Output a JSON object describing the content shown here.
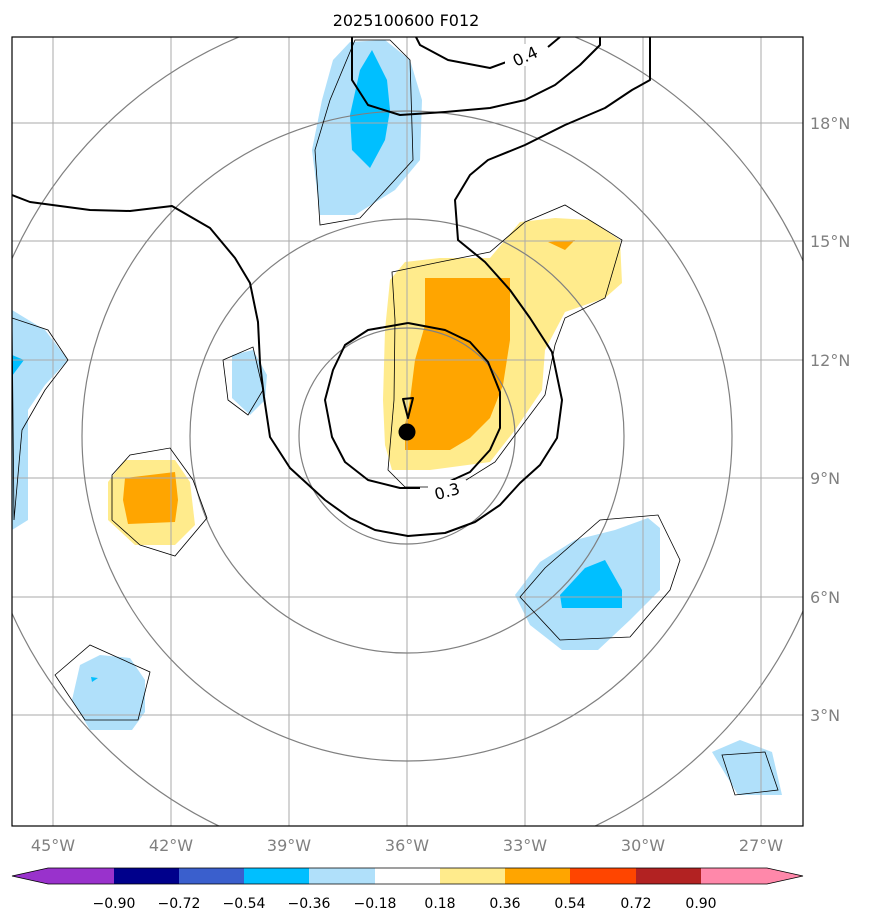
{
  "title": "2025100600 F012",
  "map": {
    "lon_ticks": [
      "45°W",
      "42°W",
      "39°W",
      "36°W",
      "33°W",
      "30°W",
      "27°W"
    ],
    "lon_values": [
      -45,
      -42,
      -39,
      -36,
      -33,
      -30,
      -27
    ],
    "lat_ticks": [
      "3°N",
      "6°N",
      "9°N",
      "12°N",
      "15°N",
      "18°N"
    ],
    "lat_values": [
      3,
      6,
      9,
      12,
      15,
      18
    ],
    "lon_range": [
      -46,
      -26
    ],
    "lat_range": [
      0,
      20
    ],
    "contour_labels": [
      "0.4",
      "0.3"
    ],
    "storm_center": {
      "lon": -36.0,
      "lat": 10.2
    }
  },
  "colorbar": {
    "ticks": [
      "−0.90",
      "−0.72",
      "−0.54",
      "−0.36",
      "−0.18",
      "0.18",
      "0.36",
      "0.54",
      "0.72",
      "0.90"
    ],
    "colors": [
      "#9932cc",
      "#00008b",
      "#3a5fcd",
      "#00bfff",
      "#b0e0fa",
      "#ffffff",
      "#ffeb8c",
      "#ffa500",
      "#ff4500",
      "#b22222",
      "#ff88aa"
    ]
  },
  "palette": {
    "light_blue": "#b0e0fa",
    "blue": "#00bfff",
    "light_yellow": "#ffeb8c",
    "orange": "#ffa500",
    "grid": "#aaaaaa",
    "ring": "#808080"
  }
}
